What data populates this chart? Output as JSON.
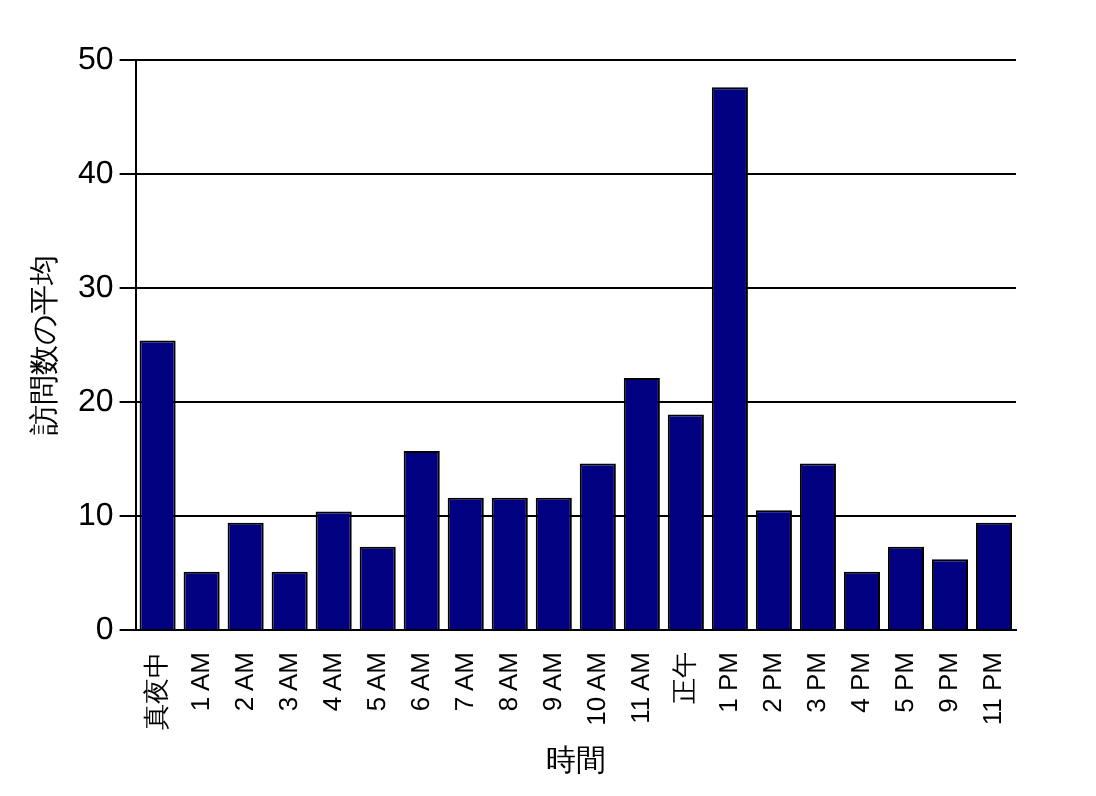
{
  "chart_data": {
    "type": "bar",
    "xlabel": "時間",
    "ylabel": "訪問数の平均",
    "categories": [
      "真夜中",
      "1 AM",
      "2 AM",
      "3 AM",
      "4 AM",
      "5 AM",
      "6 AM",
      "7 AM",
      "8 AM",
      "9 AM",
      "10 AM",
      "11 AM",
      "正午",
      "1 PM",
      "2 PM",
      "3 PM",
      "4 PM",
      "5 PM",
      "9 PM",
      "11 PM"
    ],
    "values": [
      25.4,
      5.1,
      9.4,
      5.1,
      10.4,
      7.3,
      15.7,
      11.6,
      11.6,
      11.6,
      14.6,
      22.1,
      18.9,
      47.6,
      10.5,
      14.6,
      5.1,
      7.3,
      6.2,
      9.4
    ],
    "color": "#000080",
    "ylim": [
      0,
      50
    ],
    "yticks": [
      0,
      10,
      20,
      30,
      40,
      50
    ],
    "grid": "y",
    "legend": false
  }
}
